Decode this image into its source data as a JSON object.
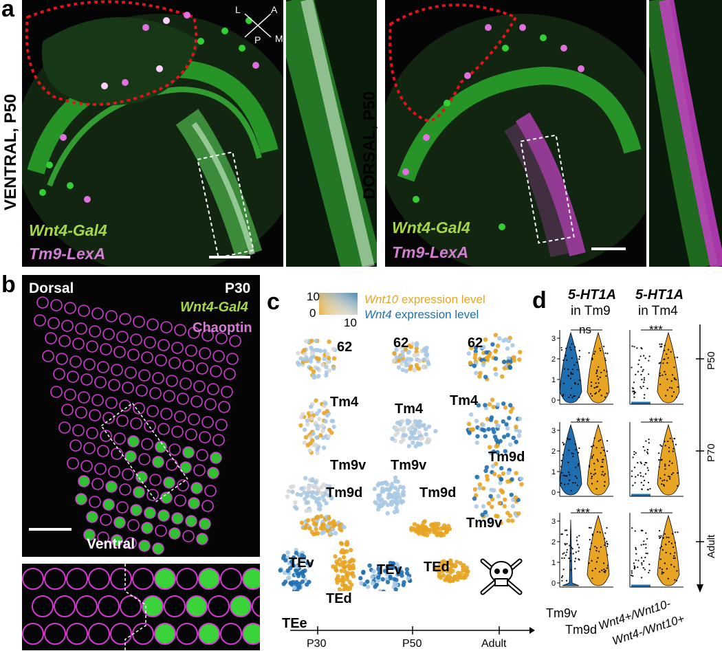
{
  "panel_a": {
    "label": "a",
    "left": {
      "side_label": "VENTRAL, P50",
      "driver": "Wnt4-Gal4",
      "reporter": "Tm9-LexA"
    },
    "right": {
      "side_label": "DORSAL, P50",
      "driver": "Wnt4-Gal4",
      "reporter": "Tm9-LexA"
    },
    "compass": {
      "l": "L",
      "a": "A",
      "p": "P",
      "m": "M"
    }
  },
  "panel_b": {
    "label": "b",
    "dorsal": "Dorsal",
    "ventral": "Ventral",
    "stage": "P30",
    "driver": "Wnt4-Gal4",
    "stain": "Chaoptin"
  },
  "panel_c": {
    "label": "c",
    "legend": {
      "max": "10",
      "min": "0",
      "max2": "10",
      "wnt10": "Wnt10",
      "wnt10_suffix": " expression level",
      "wnt4": "Wnt4",
      "wnt4_suffix": " expression level"
    },
    "clusters": {
      "c62": "62",
      "tm4": "Tm4",
      "tm9v": "Tm9v",
      "tm9d": "Tm9d",
      "tev": "TEv",
      "ted": "TEd",
      "tee": "TEe"
    },
    "axis": [
      "P30",
      "P50",
      "Adult"
    ],
    "colors": {
      "wnt10": "#e8a423",
      "wnt4": "#1f6fb0",
      "light_blue": "#a9c9e3",
      "grey": "#d8d8d8"
    }
  },
  "panel_d": {
    "label": "d",
    "col1_title": "5-HT1A",
    "col1_sub": "in Tm9",
    "col2_title": "5-HT1A",
    "col2_sub": "in Tm4",
    "x1": [
      "Tm9v",
      "Tm9d"
    ],
    "x2": [
      "Wnt4+/Wnt10-",
      "Wnt4-/Wnt10+"
    ],
    "stages": [
      "P50",
      "P70",
      "Adult"
    ],
    "yticks": [
      "0",
      "1",
      "2",
      "3"
    ],
    "significance": {
      "p50_tm9": "ns",
      "p50_tm4": "***",
      "p70_tm9": "***",
      "p70_tm4": "***",
      "adult_tm9": "***",
      "adult_tm4": "***"
    }
  }
}
